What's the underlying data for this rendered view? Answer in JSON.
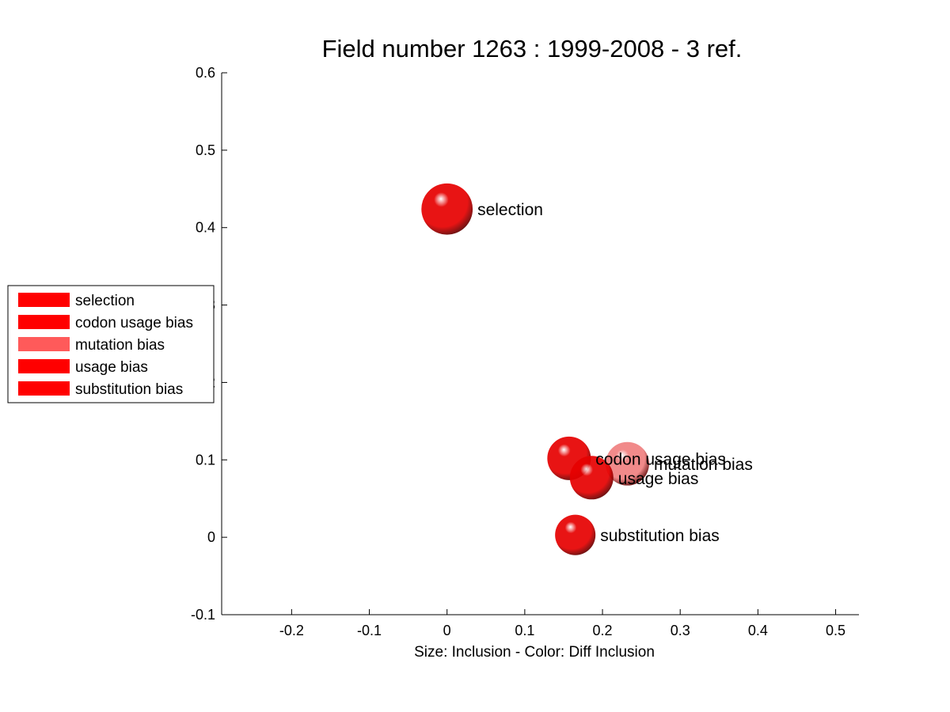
{
  "chart_data": {
    "type": "scatter",
    "title": "Field number 1263 : 1999-2008  - 3 ref.",
    "xlabel": "Size: Inclusion - Color: Diff Inclusion",
    "ylabel": "",
    "xlim": [
      -0.29,
      0.53
    ],
    "ylim": [
      -0.1,
      0.6
    ],
    "xticks": [
      -0.2,
      -0.1,
      0,
      0.1,
      0.2,
      0.3,
      0.4,
      0.5
    ],
    "xtick_labels": [
      "-0.2",
      "-0.1",
      "0",
      "0.1",
      "0.2",
      "0.3",
      "0.4",
      "0.5"
    ],
    "yticks": [
      -0.1,
      0,
      0.1,
      0.2,
      0.3,
      0.4,
      0.5,
      0.6
    ],
    "ytick_labels": [
      "-0.1",
      "0",
      "0.1",
      "0.2",
      "0.3",
      "0.4",
      "0.5",
      "0.6"
    ],
    "grid": false,
    "legend_position": "left",
    "points": [
      {
        "label": "selection",
        "x": 0.0,
        "y": 0.424,
        "size": 0.033,
        "color": "#e60000"
      },
      {
        "label": "codon usage bias",
        "x": 0.157,
        "y": 0.102,
        "size": 0.028,
        "color": "#e60000"
      },
      {
        "label": "mutation bias",
        "x": 0.232,
        "y": 0.095,
        "size": 0.028,
        "color": "#f08080"
      },
      {
        "label": "usage bias",
        "x": 0.186,
        "y": 0.077,
        "size": 0.028,
        "color": "#e60000"
      },
      {
        "label": "substitution bias",
        "x": 0.165,
        "y": 0.003,
        "size": 0.026,
        "color": "#e60000"
      }
    ],
    "legend": [
      {
        "label": "selection",
        "color": "#ff0000"
      },
      {
        "label": "codon usage bias",
        "color": "#ff0000"
      },
      {
        "label": "mutation bias",
        "color": "#ff5a5a"
      },
      {
        "label": "usage bias",
        "color": "#ff0000"
      },
      {
        "label": "substitution bias",
        "color": "#ff0000"
      }
    ]
  }
}
